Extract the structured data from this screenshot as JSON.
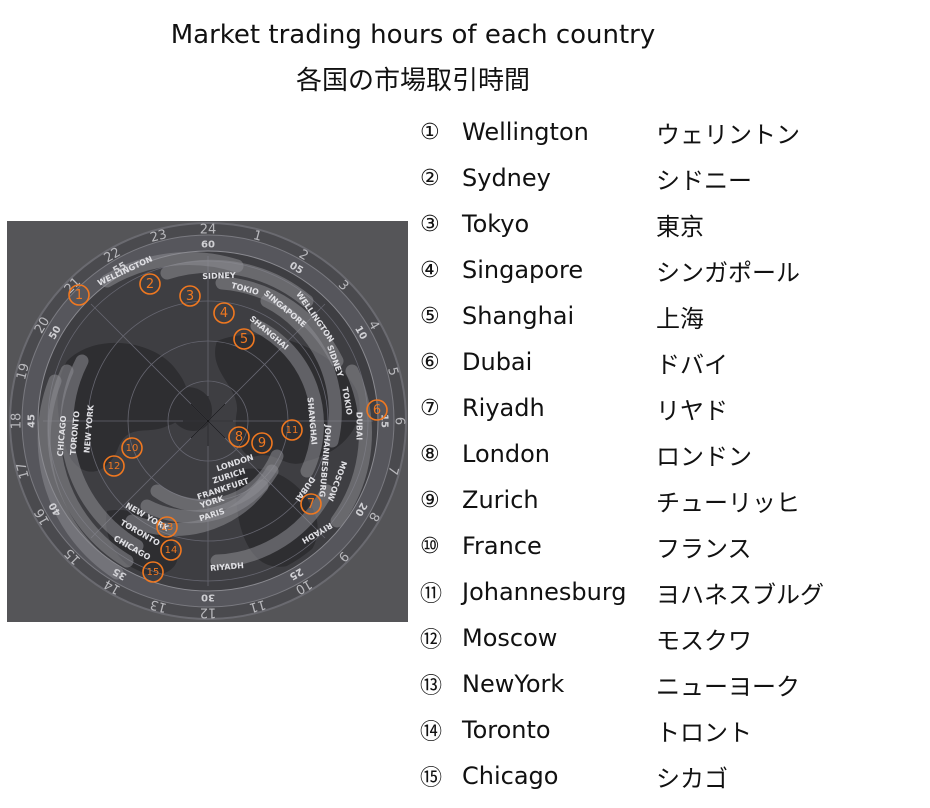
{
  "header": {
    "title_en": "Market trading hours of each country",
    "title_ja": "各国の市場取引時間"
  },
  "clock": {
    "hour_labels": [
      "24",
      "1",
      "2",
      "3",
      "4",
      "5",
      "6",
      "7",
      "8",
      "9",
      "10",
      "11",
      "12",
      "13",
      "14",
      "15",
      "16",
      "17",
      "18",
      "19",
      "20",
      "21",
      "22",
      "23"
    ],
    "minute_labels": [
      "60",
      "05",
      "10",
      "15",
      "20",
      "25",
      "30",
      "35",
      "40",
      "45",
      "50",
      "55"
    ],
    "market_band_labels": [
      "SIDNEY",
      "WELLINGTON",
      "TOKIO",
      "SINGAPORE",
      "SHANGHAI",
      "WELLINGTON",
      "SIDNEY",
      "TOKIO",
      "DUBAI",
      "SHANGHAI",
      "JOHANNESBURG",
      "MOSCOW",
      "DUBAI",
      "RIYADH",
      "LONDON",
      "ZURICH",
      "FRANKFURT",
      "YORK",
      "PARIS",
      "NEW YORK",
      "TORONTO",
      "CHICAGO",
      "RIYADH",
      "CHICAGO",
      "TORONTO",
      "NEW YORK"
    ],
    "markers": [
      "①",
      "②",
      "③",
      "④",
      "⑤",
      "⑥",
      "⑦",
      "⑧",
      "⑨",
      "⑩",
      "⑪",
      "⑫",
      "⑬",
      "⑭",
      "⑮"
    ],
    "accent_color": "#f07820",
    "background_color": "#555558"
  },
  "legend": [
    {
      "num": "①",
      "en": "Wellington",
      "ja": "ウェリントン"
    },
    {
      "num": "②",
      "en": "Sydney",
      "ja": "シドニー"
    },
    {
      "num": "③",
      "en": "Tokyo",
      "ja": "東京"
    },
    {
      "num": "④",
      "en": "Singapore",
      "ja": "シンガポール"
    },
    {
      "num": "⑤",
      "en": "Shanghai",
      "ja": "上海"
    },
    {
      "num": "⑥",
      "en": "Dubai",
      "ja": "ドバイ"
    },
    {
      "num": "⑦",
      "en": "Riyadh",
      "ja": "リヤド"
    },
    {
      "num": "⑧",
      "en": "London",
      "ja": "ロンドン"
    },
    {
      "num": "⑨",
      "en": "Zurich",
      "ja": "チューリッヒ"
    },
    {
      "num": "⑩",
      "en": "France",
      "ja": "フランス"
    },
    {
      "num": "⑪",
      "en": "Johannesburg",
      "ja": "ヨハネスブルグ"
    },
    {
      "num": "⑫",
      "en": "Moscow",
      "ja": "モスクワ"
    },
    {
      "num": "⑬",
      "en": "NewYork",
      "ja": "ニューヨーク"
    },
    {
      "num": "⑭",
      "en": "Toronto",
      "ja": "トロント"
    },
    {
      "num": "⑮",
      "en": "Chicago",
      "ja": "シカゴ"
    }
  ]
}
